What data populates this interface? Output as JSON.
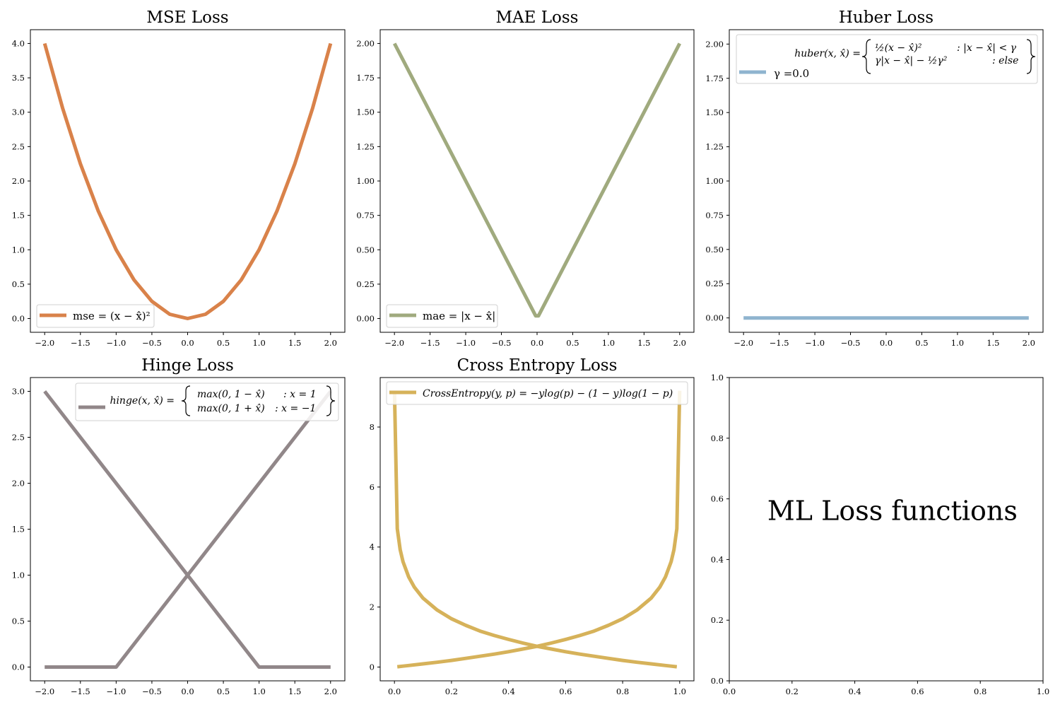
{
  "figure_text": "ML Loss functions",
  "chart_data": [
    {
      "type": "line",
      "title": "MSE Loss",
      "xlabel": "",
      "ylabel": "",
      "xlim": [
        -2.2,
        2.2
      ],
      "ylim": [
        -0.2,
        4.2
      ],
      "xticks": [
        "−2.0",
        "−1.5",
        "−1.0",
        "−0.5",
        "0.0",
        "0.5",
        "1.0",
        "1.5",
        "2.0"
      ],
      "yticks": [
        "0.0",
        "0.5",
        "1.0",
        "1.5",
        "2.0",
        "2.5",
        "3.0",
        "3.5",
        "4.0"
      ],
      "legend": {
        "loc": "lower left",
        "entries": [
          {
            "label": "mse = (x − x̂)²",
            "color": "#d9824a"
          }
        ]
      },
      "series": [
        {
          "color": "#d9824a",
          "x": [
            -2.0,
            -1.75,
            -1.5,
            -1.25,
            -1.0,
            -0.75,
            -0.5,
            -0.25,
            0.0,
            0.25,
            0.5,
            0.75,
            1.0,
            1.25,
            1.5,
            1.75,
            2.0
          ],
          "y": [
            4.0,
            3.0625,
            2.25,
            1.5625,
            1.0,
            0.5625,
            0.25,
            0.0625,
            0.0,
            0.0625,
            0.25,
            0.5625,
            1.0,
            1.5625,
            2.25,
            3.0625,
            4.0
          ]
        }
      ]
    },
    {
      "type": "line",
      "title": "MAE Loss",
      "xlabel": "",
      "ylabel": "",
      "xlim": [
        -2.2,
        2.2
      ],
      "ylim": [
        -0.1,
        2.1
      ],
      "xticks": [
        "−2.0",
        "−1.5",
        "−1.0",
        "−0.5",
        "0.0",
        "0.5",
        "1.0",
        "1.5",
        "2.0"
      ],
      "yticks": [
        "0.00",
        "0.25",
        "0.50",
        "0.75",
        "1.00",
        "1.25",
        "1.50",
        "1.75",
        "2.00"
      ],
      "legend": {
        "loc": "lower left",
        "entries": [
          {
            "label": "mae = |x − x̂|",
            "color": "#a0aa7e"
          }
        ]
      },
      "series": [
        {
          "color": "#a0aa7e",
          "x": [
            -2.0,
            -0.02,
            0.0,
            0.02,
            2.0
          ],
          "y": [
            2.0,
            0.02,
            0.02,
            0.02,
            2.0
          ]
        }
      ]
    },
    {
      "type": "line",
      "title": "Huber Loss",
      "xlabel": "",
      "ylabel": "",
      "xlim": [
        -2.2,
        2.2
      ],
      "ylim": [
        -0.105,
        2.105
      ],
      "xticks": [
        "−2.0",
        "−1.5",
        "−1.0",
        "−0.5",
        "0.0",
        "0.5",
        "1.0",
        "1.5",
        "2.0"
      ],
      "yticks": [
        "0.00",
        "0.25",
        "0.50",
        "0.75",
        "1.00",
        "1.25",
        "1.50",
        "1.75",
        "2.00"
      ],
      "legend": {
        "loc": "upper left",
        "formula_name": "huber(x, x̂) =",
        "formula_cases": [
          "½(x − x̂)²",
          ": |x − x̂| < γ",
          "γ|x − x̂| − ½γ²",
          ": else"
        ],
        "entries": [
          {
            "label": "γ =0.0",
            "color": "#8fb4cf"
          }
        ]
      },
      "series": [
        {
          "color": "#8fb4cf",
          "x": [
            -2.0,
            2.0
          ],
          "y": [
            0.0,
            0.0
          ]
        }
      ]
    },
    {
      "type": "line",
      "title": "Hinge Loss",
      "xlabel": "",
      "ylabel": "",
      "xlim": [
        -2.2,
        2.2
      ],
      "ylim": [
        -0.15,
        3.15
      ],
      "xticks": [
        "−2.0",
        "−1.5",
        "−1.0",
        "−0.5",
        "0.0",
        "0.5",
        "1.0",
        "1.5",
        "2.0"
      ],
      "yticks": [
        "0.0",
        "0.5",
        "1.0",
        "1.5",
        "2.0",
        "2.5",
        "3.0"
      ],
      "legend": {
        "loc": "upper right",
        "formula_name": "hinge(x, x̂) =",
        "formula_cases": [
          "max(0, 1 − x̂)",
          ": x = 1",
          "max(0, 1 + x̂)",
          ": x = −1"
        ],
        "entries": [
          {
            "label": "",
            "color": "#918789"
          }
        ]
      },
      "series": [
        {
          "color": "#918789",
          "x": [
            -2.0,
            1.0,
            2.0
          ],
          "y": [
            3.0,
            0.0,
            0.0
          ]
        },
        {
          "color": "#918789",
          "x": [
            -2.0,
            -1.0,
            2.0
          ],
          "y": [
            0.0,
            0.0,
            3.0
          ]
        }
      ]
    },
    {
      "type": "line",
      "title": "Cross Entropy Loss",
      "xlabel": "",
      "ylabel": "",
      "xlim": [
        -0.05,
        1.05
      ],
      "ylim": [
        -0.46,
        9.65
      ],
      "xticks": [
        "0.0",
        "0.2",
        "0.4",
        "0.6",
        "0.8",
        "1.0"
      ],
      "yticks": [
        "0",
        "2",
        "4",
        "6",
        "8"
      ],
      "legend": {
        "loc": "upper center",
        "entries": [
          {
            "label": "CrossEntropy(y, p) = −ylog(p) − (1 − y)log(1 − p)",
            "color": "#d6b25a"
          }
        ]
      },
      "series": [
        {
          "color": "#d6b25a",
          "x": [
            0.0001,
            0.01,
            0.02,
            0.03,
            0.05,
            0.07,
            0.1,
            0.15,
            0.2,
            0.25,
            0.3,
            0.35,
            0.4,
            0.45,
            0.5,
            0.55,
            0.6,
            0.65,
            0.7,
            0.75,
            0.8,
            0.85,
            0.9,
            0.95,
            0.97,
            0.99
          ],
          "y": [
            9.21,
            4.61,
            3.91,
            3.51,
            3.0,
            2.66,
            2.3,
            1.9,
            1.61,
            1.39,
            1.2,
            1.05,
            0.92,
            0.8,
            0.69,
            0.6,
            0.51,
            0.43,
            0.36,
            0.29,
            0.22,
            0.16,
            0.105,
            0.051,
            0.03,
            0.01
          ]
        },
        {
          "color": "#d6b25a",
          "x": [
            0.01,
            0.03,
            0.05,
            0.1,
            0.15,
            0.2,
            0.25,
            0.3,
            0.35,
            0.4,
            0.45,
            0.5,
            0.55,
            0.6,
            0.65,
            0.7,
            0.75,
            0.8,
            0.85,
            0.9,
            0.93,
            0.95,
            0.97,
            0.98,
            0.99,
            0.9999
          ],
          "y": [
            0.01,
            0.03,
            0.051,
            0.105,
            0.16,
            0.22,
            0.29,
            0.36,
            0.43,
            0.51,
            0.6,
            0.69,
            0.8,
            0.92,
            1.05,
            1.2,
            1.39,
            1.61,
            1.9,
            2.3,
            2.66,
            3.0,
            3.51,
            3.91,
            4.61,
            9.21
          ]
        }
      ]
    },
    {
      "type": "text",
      "title": "",
      "xlim": [
        0,
        1
      ],
      "ylim": [
        0,
        1
      ],
      "xticks": [
        "0.0",
        "0.2",
        "0.4",
        "0.6",
        "0.8",
        "1.0"
      ],
      "yticks": [
        "0.0",
        "0.2",
        "0.4",
        "0.6",
        "0.8",
        "1.0"
      ],
      "series": []
    }
  ]
}
